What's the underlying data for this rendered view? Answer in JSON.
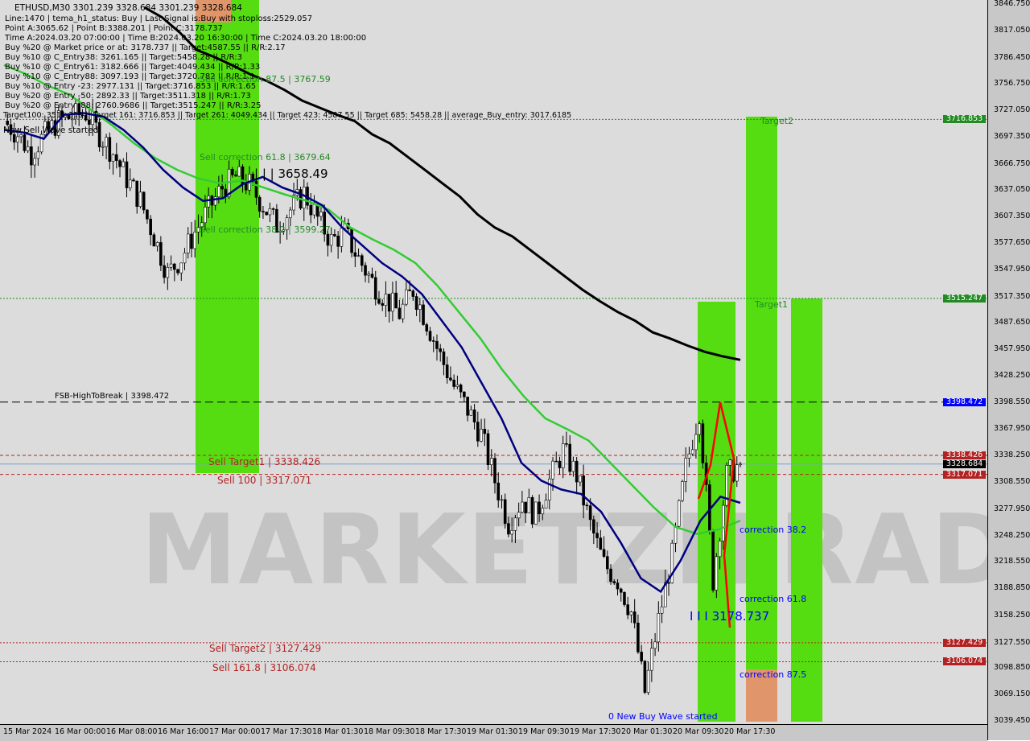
{
  "header": {
    "symbol_line": "ETHUSD,M30  3301.239 3328.684 3301.239 3328.684",
    "lines": [
      "Line:1470 | tema_h1_status: Buy | Last Signal is:Buy with stoploss:2529.057",
      "Point A:3065.62 | Point B:3388.201 | Point C:3178.737",
      "Time A:2024.03.20 07:00:00 | Time B:2024.03.20 16:30:00 | Time C:2024.03.20 18:00:00",
      "Buy %20 @ Market price or at: 3178.737 || Target:4587.55 || R/R:2.17",
      "Buy %10 @ C_Entry38: 3261.165 || Target:5458.28 || R/R:3",
      "Buy %10 @ C_Entry61: 3182.666 || Target:4049.434 || R/R:1.33",
      "Buy %10 @ C_Entry88: 3097.193 || Target:3720.782 || R/R:1.1",
      "Buy %10 @ Entry -23: 2977.131 || Target:3716.853 || R/R:1.65",
      "Buy %20 @ Entry -50: 2892.33 || Target:3511.318 || R/R:1.73",
      "Buy %20 @ Entry -88: 2760.9686 || Target:3515.247 || R/R:3.25"
    ],
    "overlay_text": "New Sell Wave started",
    "targets_line": "Target100: 3511.318 || Target 161: 3716.853 || Target 261: 4049.434 || Target 423: 4587.55 || Target 685: 5458.28 || average_Buy_entry: 3017.6185"
  },
  "watermark": "MARKETZITRADE",
  "colors": {
    "bull": "#00a000",
    "bear": "#000000",
    "ma_slow": "#000000",
    "ma_mid": "#33cc33",
    "ma_fast": "#000080",
    "zone_green": "#55dd11",
    "zone_orange": "#e0956a",
    "red": "#b22222",
    "blue": "#0000ff",
    "green_label": "#228b22"
  },
  "labels": {
    "sell_corr_875": "Sell correction 87.5 | 3767.59",
    "sell_corr_618": "Sell correction 61.8 | 3679.64",
    "sell_corr_382": "Sell correction 38.2 | 3599.27",
    "high_mark": "| | | 3658.49",
    "fsb": "FSB-HighToBreak | 3398.472",
    "sell_target1": "Sell Target1 | 3338.426",
    "sell_100": "Sell 100 | 3317.071",
    "sell_target2": "Sell Target2 | 3127.429",
    "sell_1618": "Sell 161.8 | 3106.074",
    "corr_382": "correction 38.2",
    "corr_618": "correction 61.8",
    "corr_875": "correction 87.5",
    "point_c": "I I I 3178.737",
    "new_buy": "0 New Buy Wave started",
    "target2": "Target2",
    "target1": "Target1"
  },
  "chart_data": {
    "type": "candlestick",
    "symbol": "ETHUSD",
    "timeframe": "M30",
    "ylim": [
      3039.45,
      3846.75
    ],
    "y_ticks": [
      "3846.750",
      "3817.050",
      "3786.450",
      "3756.750",
      "3727.050",
      "3697.350",
      "3666.750",
      "3637.050",
      "3607.350",
      "3577.650",
      "3547.950",
      "3517.350",
      "3487.650",
      "3457.950",
      "3428.250",
      "3398.550",
      "3367.950",
      "3338.250",
      "3308.550",
      "3277.950",
      "3248.250",
      "3218.550",
      "3188.850",
      "3158.250",
      "3127.550",
      "3098.850",
      "3069.150",
      "3039.450"
    ],
    "x_ticks": [
      "15 Mar 2024",
      "16 Mar 00:00",
      "16 Mar 08:00",
      "16 Mar 16:00",
      "17 Mar 00:00",
      "17 Mar 17:30",
      "18 Mar 01:30",
      "18 Mar 09:30",
      "18 Mar 17:30",
      "19 Mar 01:30",
      "19 Mar 09:30",
      "19 Mar 17:30",
      "20 Mar 01:30",
      "20 Mar 09:30",
      "20 Mar 17:30"
    ],
    "closes": [
      3715,
      3700,
      3679,
      3700,
      3715,
      3720,
      3724,
      3700,
      3679,
      3650,
      3625,
      3585,
      3543,
      3561,
      3590,
      3616,
      3640,
      3652,
      3643,
      3620,
      3598,
      3615,
      3634,
      3605,
      3580,
      3589,
      3560,
      3534,
      3515,
      3498,
      3525,
      3489,
      3450,
      3416,
      3390,
      3362,
      3310,
      3262,
      3289,
      3271,
      3310,
      3344,
      3316,
      3260,
      3216,
      3198,
      3162,
      3072,
      3153,
      3225,
      3325,
      3389,
      3198,
      3316,
      3328.684
    ],
    "ma_slow": [
      null,
      null,
      null,
      null,
      null,
      null,
      null,
      null,
      3843,
      3832,
      3815,
      3795,
      3787,
      3778,
      3768,
      3760,
      3750,
      3738,
      3730,
      3722,
      3715,
      3700,
      3690,
      3675,
      3660,
      3645,
      3630,
      3610,
      3595,
      3585,
      3570,
      3555,
      3540,
      3525,
      3512,
      3500,
      3490,
      3477,
      3470,
      3462,
      3455,
      3450,
      3446
    ],
    "ma_mid": [
      3778,
      3768,
      3755,
      3745,
      3728,
      3710,
      3690,
      3673,
      3660,
      3650,
      3645,
      3648,
      3640,
      3632,
      3625,
      3615,
      3595,
      3582,
      3570,
      3555,
      3530,
      3500,
      3470,
      3435,
      3405,
      3380,
      3368,
      3355,
      3330,
      3305,
      3280,
      3258,
      3250,
      3255,
      3265
    ],
    "ma_fast": [
      3705,
      3702,
      3695,
      3722,
      3724,
      3720,
      3705,
      3685,
      3660,
      3640,
      3625,
      3628,
      3644,
      3652,
      3640,
      3632,
      3620,
      3595,
      3575,
      3555,
      3540,
      3520,
      3490,
      3460,
      3420,
      3380,
      3330,
      3310,
      3300,
      3295,
      3275,
      3240,
      3200,
      3185,
      3220,
      3265,
      3292,
      3285
    ],
    "levels": [
      {
        "price": 3716.853,
        "label": "3716.853",
        "color": "#228b22",
        "style": "dotted"
      },
      {
        "price": 3515.247,
        "label": "3515.247",
        "color": "#228b22",
        "style": "dotted"
      },
      {
        "price": 3398.472,
        "label": "3398.472",
        "color": "#0000ff",
        "style": "dashed-black"
      },
      {
        "price": 3338.426,
        "label": "3338.426",
        "color": "#b22222",
        "style": "dashed"
      },
      {
        "price": 3328.684,
        "label": "3328.684",
        "color": "#000000",
        "style": "current"
      },
      {
        "price": 3317.071,
        "label": "3317.071",
        "color": "#b22222",
        "style": "dashed"
      },
      {
        "price": 3127.429,
        "label": "3127.429",
        "color": "#b22222",
        "style": "dotted"
      },
      {
        "price": 3106.074,
        "label": "3106.074",
        "color": "#b22222",
        "style": "dotted"
      }
    ]
  }
}
